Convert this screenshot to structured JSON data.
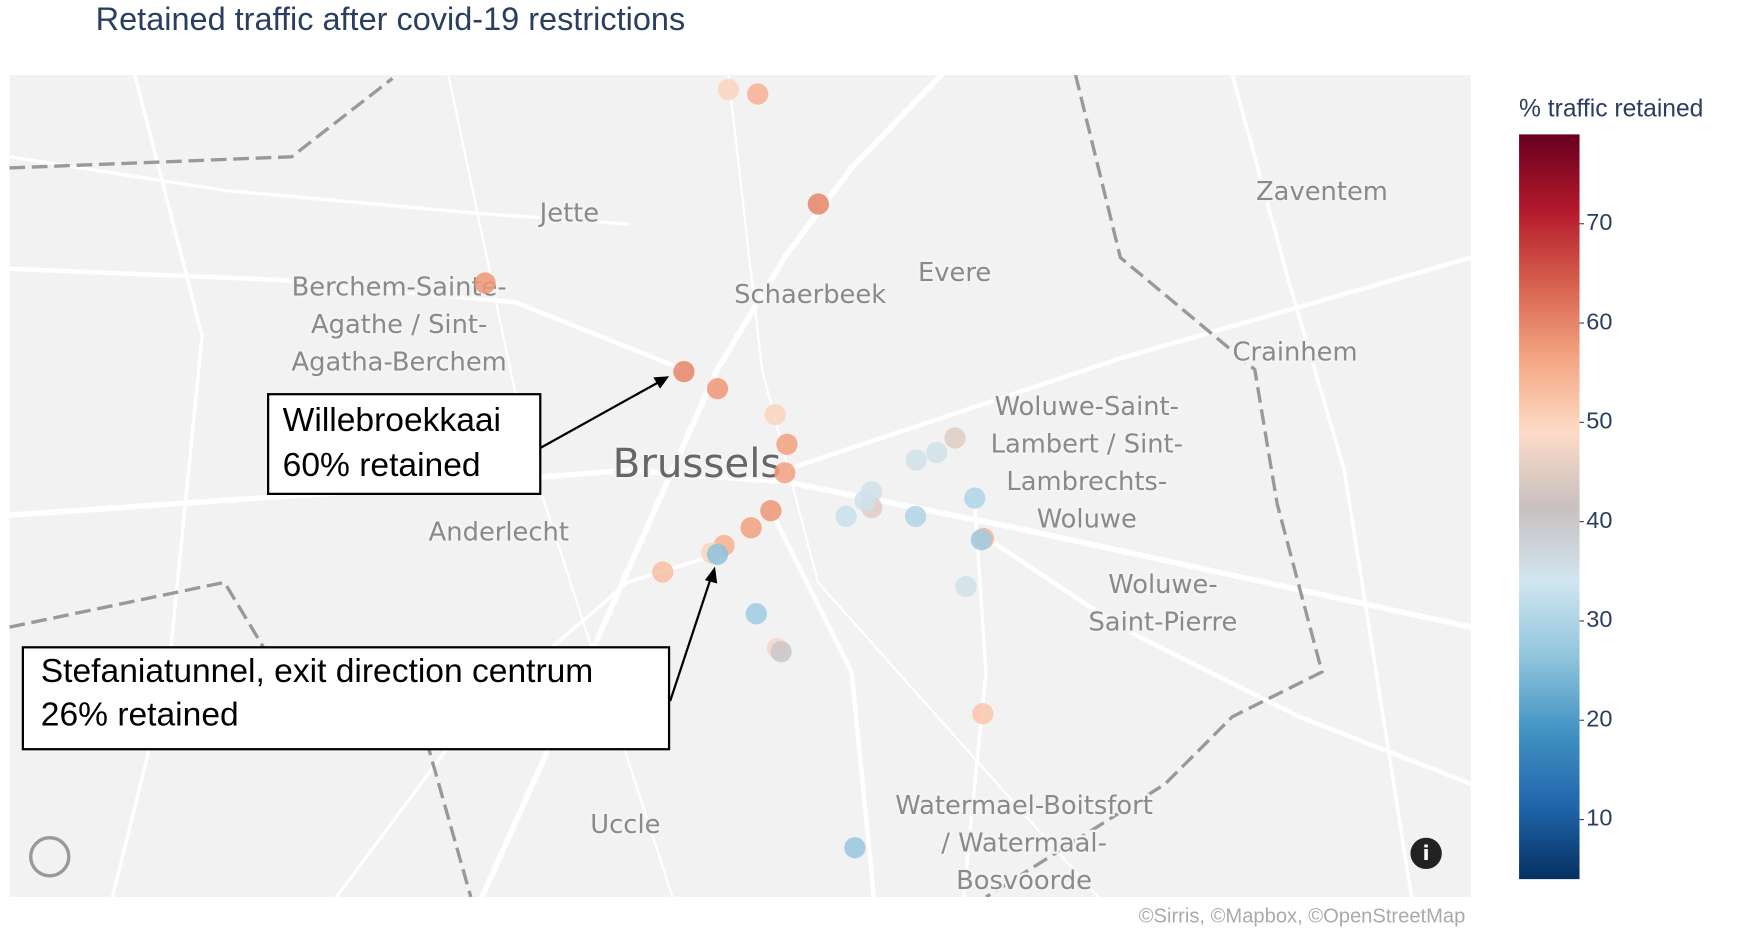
{
  "chart_data": {
    "type": "scatter_map",
    "title": "Retained traffic after covid-19 restrictions",
    "lonlim": [
      4.27,
      4.47
    ],
    "latlim": [
      50.78,
      50.91
    ],
    "lon": [
      4.3684,
      4.3724,
      4.3807,
      4.3351,
      4.3623,
      4.3669,
      4.3748,
      4.3764,
      4.3761,
      4.3994,
      4.3969,
      4.3941,
      4.388,
      4.388,
      4.3871,
      4.3845,
      4.394,
      4.4021,
      4.3742,
      4.3715,
      4.4033,
      4.403,
      4.3678,
      4.3661,
      4.3669,
      4.3594,
      4.4009,
      4.3722,
      4.3751,
      4.3756,
      4.4032,
      4.3857
    ],
    "lat": [
      50.9077,
      50.907,
      50.8896,
      50.8771,
      50.8631,
      50.8604,
      50.8563,
      50.8516,
      50.8471,
      50.8526,
      50.8503,
      50.8491,
      50.8441,
      50.8416,
      50.8427,
      50.8402,
      50.8402,
      50.8431,
      50.8411,
      50.8384,
      50.8367,
      50.8365,
      50.8356,
      50.8344,
      50.8342,
      50.8314,
      50.8291,
      50.8248,
      50.8193,
      50.8188,
      50.809,
      50.7878
    ],
    "values": [
      50,
      55,
      60,
      58,
      60,
      58,
      50,
      57,
      57,
      45,
      35,
      35,
      35,
      45,
      35,
      33,
      30,
      30,
      58,
      57,
      55,
      28,
      55,
      50,
      26,
      53,
      35,
      28,
      48,
      40,
      52,
      27
    ],
    "colorscale": [
      "#053061",
      "#2166ac",
      "#4393c3",
      "#92c5de",
      "#d1e5f0",
      "#c8c0c0",
      "#fddbc7",
      "#f4a582",
      "#d6604d",
      "#b2182b",
      "#67001f"
    ],
    "clim": [
      4,
      79
    ],
    "colorbar_title": "% traffic retained",
    "colorbar_ticks": [
      10,
      20,
      30,
      40,
      50,
      60,
      70
    ],
    "annotations": [
      [
        "Willebroekkaai",
        "60% retained"
      ],
      [
        "Stefaniatunnel, exit direction centrum",
        "26% retained"
      ]
    ],
    "map_labels": [
      [
        "Jette"
      ],
      [
        "Berchem-Sainte-",
        "Agathe / Sint-",
        "Agatha-Berchem"
      ],
      [
        "Schaerbeek"
      ],
      [
        "Evere"
      ],
      [
        "Zaventem"
      ],
      [
        "Crainhem"
      ],
      [
        "Woluwe-Saint-",
        "Lambert / Sint-",
        "Lambrechts-",
        "Woluwe"
      ],
      [
        "Brussels"
      ],
      [
        "Anderlecht"
      ],
      [
        "Woluwe-",
        "Saint-Pierre"
      ],
      [
        "Uccle"
      ],
      [
        "Watermael-Boitsfort",
        "/ Watermaal-",
        "Bosvoorde"
      ]
    ],
    "attribution": "©Sirris, ©Mapbox, ©OpenStreetMap"
  }
}
